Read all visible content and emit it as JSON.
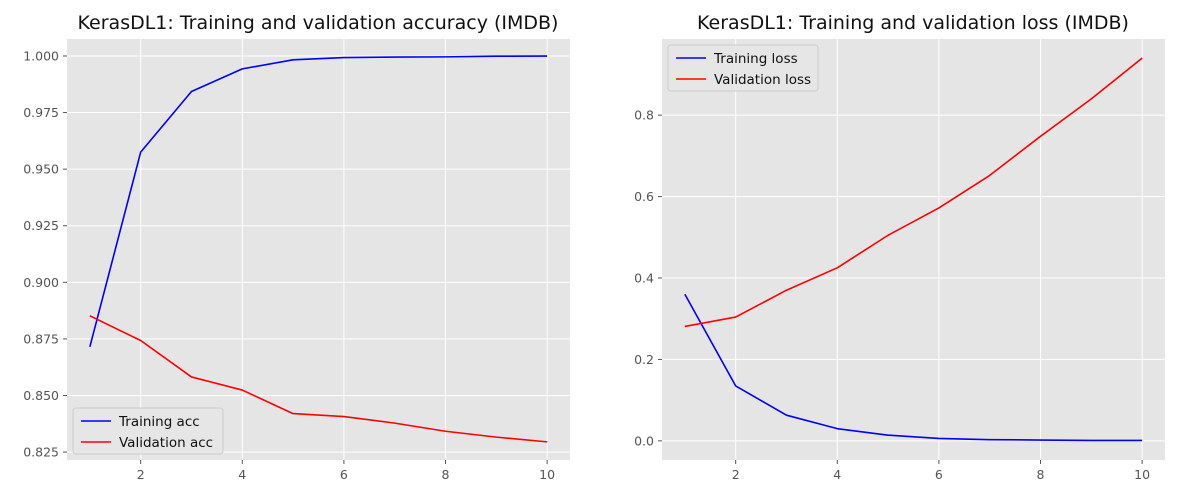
{
  "chart_data": [
    {
      "type": "line",
      "title": "KerasDL1: Training and validation accuracy (IMDB)",
      "xlabel": "",
      "ylabel": "",
      "x": [
        1,
        2,
        3,
        4,
        5,
        6,
        7,
        8,
        9,
        10
      ],
      "xlim": [
        0.55,
        10.45
      ],
      "ylim": [
        0.8215,
        1.0075
      ],
      "xticks": [
        2,
        4,
        6,
        8,
        10
      ],
      "yticks": [
        0.825,
        0.85,
        0.875,
        0.9,
        0.925,
        0.95,
        0.975,
        1.0
      ],
      "ytick_labels": [
        "0.825",
        "0.850",
        "0.875",
        "0.900",
        "0.925",
        "0.950",
        "0.975",
        "1.000"
      ],
      "grid": true,
      "legend_position": "lower-left",
      "series": [
        {
          "name": "Training acc",
          "color": "#0000ff",
          "values": [
            0.8715,
            0.9575,
            0.9843,
            0.9943,
            0.9983,
            0.9993,
            0.9995,
            0.9996,
            0.9999,
            0.99995
          ]
        },
        {
          "name": "Validation acc",
          "color": "#ff0000",
          "values": [
            0.8852,
            0.8743,
            0.8582,
            0.8524,
            0.842,
            0.8407,
            0.8378,
            0.8342,
            0.8316,
            0.8295
          ]
        }
      ]
    },
    {
      "type": "line",
      "title": "KerasDL1: Training and validation loss (IMDB)",
      "xlabel": "",
      "ylabel": "",
      "x": [
        1,
        2,
        3,
        4,
        5,
        6,
        7,
        8,
        9,
        10
      ],
      "xlim": [
        0.55,
        10.45
      ],
      "ylim": [
        -0.047,
        0.987
      ],
      "xticks": [
        2,
        4,
        6,
        8,
        10
      ],
      "yticks": [
        0.0,
        0.2,
        0.4,
        0.6,
        0.8
      ],
      "ytick_labels": [
        "0.0",
        "0.2",
        "0.4",
        "0.6",
        "0.8"
      ],
      "grid": true,
      "legend_position": "upper-left",
      "series": [
        {
          "name": "Training loss",
          "color": "#0000ff",
          "values": [
            0.36,
            0.135,
            0.063,
            0.03,
            0.014,
            0.006,
            0.003,
            0.002,
            0.001,
            0.001
          ]
        },
        {
          "name": "Validation loss",
          "color": "#ff0000",
          "values": [
            0.281,
            0.304,
            0.37,
            0.425,
            0.505,
            0.572,
            0.652,
            0.748,
            0.84,
            0.94
          ]
        }
      ]
    }
  ]
}
